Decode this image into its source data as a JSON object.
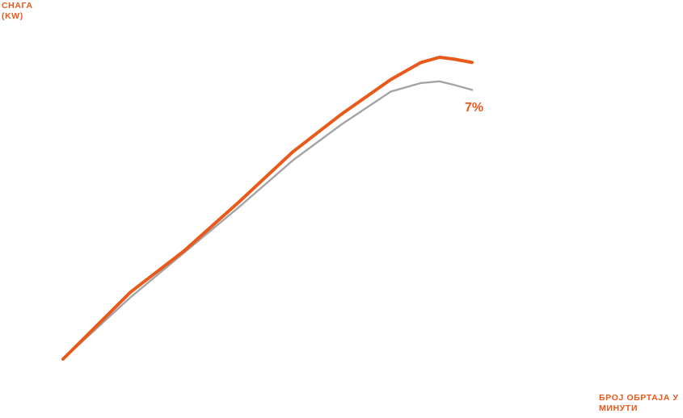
{
  "chart_data": {
    "type": "line",
    "ylabel_lines": [
      "СНАГА",
      "(KW)"
    ],
    "xlabel_lines": [
      "БРОЈ ОБРТАЈА У",
      "МИНУТИ"
    ],
    "xlim": [
      0,
      100
    ],
    "ylim": [
      0,
      100
    ],
    "grid": false,
    "legend": "none",
    "series": [
      {
        "color": "#e8591a",
        "points": [
          [
            0,
            0
          ],
          [
            14.5,
            19.5
          ],
          [
            26,
            31.5
          ],
          [
            38,
            46
          ],
          [
            49.5,
            60.5
          ],
          [
            60,
            71.5
          ],
          [
            70.5,
            81.5
          ],
          [
            77,
            86.5
          ],
          [
            81,
            88
          ],
          [
            84,
            87.5
          ],
          [
            88,
            86.5
          ]
        ]
      },
      {
        "color": "#a4a4a6",
        "points": [
          [
            0,
            0
          ],
          [
            14.5,
            18
          ],
          [
            26,
            31
          ],
          [
            38,
            44.5
          ],
          [
            49.5,
            58
          ],
          [
            60,
            68.5
          ],
          [
            70.5,
            78
          ],
          [
            77,
            80.5
          ],
          [
            81,
            81
          ],
          [
            84,
            80
          ],
          [
            88,
            78.5
          ]
        ]
      }
    ],
    "annotation": {
      "text": "7%",
      "color": "#e8591a"
    }
  }
}
